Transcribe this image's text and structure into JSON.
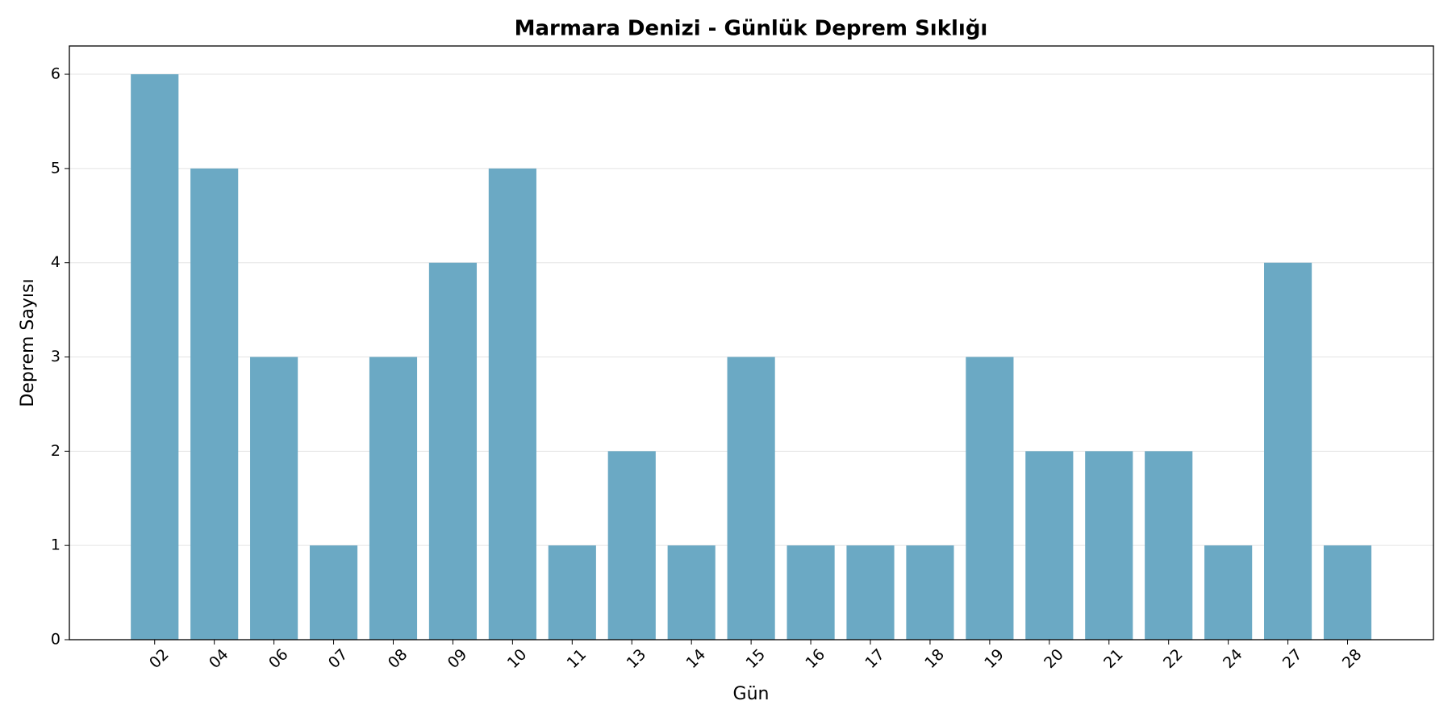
{
  "chart_data": {
    "type": "bar",
    "title": "Marmara Denizi - Günlük Deprem Sıklığı",
    "x_label": "Gün",
    "y_label": "Deprem Sayısı",
    "categories": [
      "02",
      "04",
      "06",
      "07",
      "08",
      "09",
      "10",
      "11",
      "13",
      "14",
      "15",
      "16",
      "17",
      "18",
      "19",
      "20",
      "21",
      "22",
      "24",
      "27",
      "28"
    ],
    "values": [
      6,
      5,
      3,
      1,
      3,
      4,
      5,
      1,
      2,
      1,
      3,
      1,
      1,
      1,
      3,
      2,
      2,
      2,
      1,
      4,
      1
    ],
    "color": "#6ba9c4",
    "ylim": [
      0,
      6.3
    ],
    "yticks": [
      0,
      1,
      2,
      3,
      4,
      5,
      6
    ],
    "grid": true
  }
}
